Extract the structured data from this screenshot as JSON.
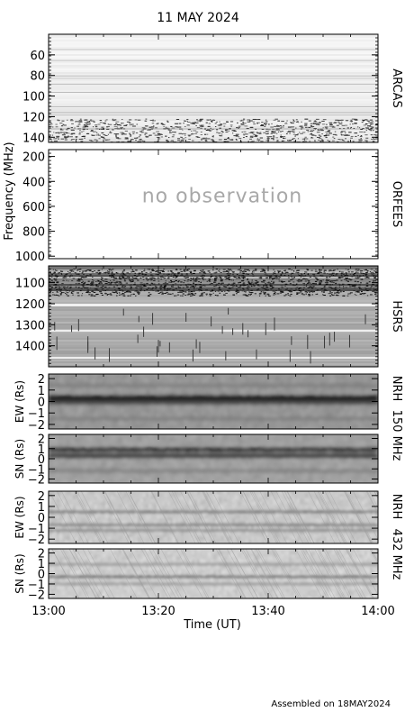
{
  "title": "11 MAY 2024",
  "footer": "Assembled on 18MAY2024",
  "chart_data": {
    "type": "heatmap",
    "x_axis": {
      "label": "Time (UT)",
      "range": [
        "13:00",
        "14:00"
      ],
      "ticks": [
        "13:00",
        "13:20",
        "13:40",
        "14:00"
      ]
    },
    "frequency_axis_label": "Frequency (MHz)",
    "panels": [
      {
        "id": "arcas",
        "instrument": "ARCAS",
        "y_unit": "MHz",
        "y_range": [
          40,
          145
        ],
        "ticks": [
          "60",
          "80",
          "100",
          "120",
          "140"
        ],
        "tick_values": [
          60,
          80,
          100,
          120,
          140
        ],
        "status": ""
      },
      {
        "id": "orfees",
        "instrument": "ORFEES",
        "y_unit": "MHz",
        "y_range": [
          145,
          1020
        ],
        "ticks": [
          "200",
          "400",
          "600",
          "800",
          "1000"
        ],
        "tick_values": [
          200,
          400,
          600,
          800,
          1000
        ],
        "status": "no observation"
      },
      {
        "id": "hsrs",
        "instrument": "HSRS",
        "y_unit": "MHz",
        "y_range": [
          1020,
          1500
        ],
        "ticks": [
          "1100",
          "1200",
          "1300",
          "1400"
        ],
        "tick_values": [
          1100,
          1200,
          1300,
          1400
        ],
        "status": ""
      },
      {
        "id": "nrh150_ew",
        "ylabel": "EW (Rs)",
        "y_range": [
          -2.4,
          2.4
        ],
        "ticks": [
          "2",
          "1",
          "0",
          "−1",
          "−2"
        ],
        "tick_values": [
          2,
          1,
          0,
          -1,
          -2
        ]
      },
      {
        "id": "nrh150_sn",
        "ylabel": "SN (Rs)",
        "y_range": [
          -2.4,
          2.4
        ],
        "ticks": [
          "2",
          "1",
          "0",
          "−1",
          "−2"
        ],
        "tick_values": [
          2,
          1,
          0,
          -1,
          -2
        ]
      },
      {
        "id": "nrh432_ew",
        "ylabel": "EW (Rs)",
        "y_range": [
          -2.4,
          2.4
        ],
        "ticks": [
          "2",
          "1",
          "0",
          "−1",
          "−2"
        ],
        "tick_values": [
          2,
          1,
          0,
          -1,
          -2
        ]
      },
      {
        "id": "nrh432_sn",
        "ylabel": "SN (Rs)",
        "y_range": [
          -2.4,
          2.4
        ],
        "ticks": [
          "2",
          "1",
          "0",
          "−1",
          "−2"
        ],
        "tick_values": [
          2,
          1,
          0,
          -1,
          -2
        ]
      }
    ],
    "side_labels": {
      "nrh150_instrument": "NRH",
      "nrh150_freq": "150 MHz",
      "nrh432_instrument": "NRH",
      "nrh432_freq": "432 MHz"
    }
  }
}
